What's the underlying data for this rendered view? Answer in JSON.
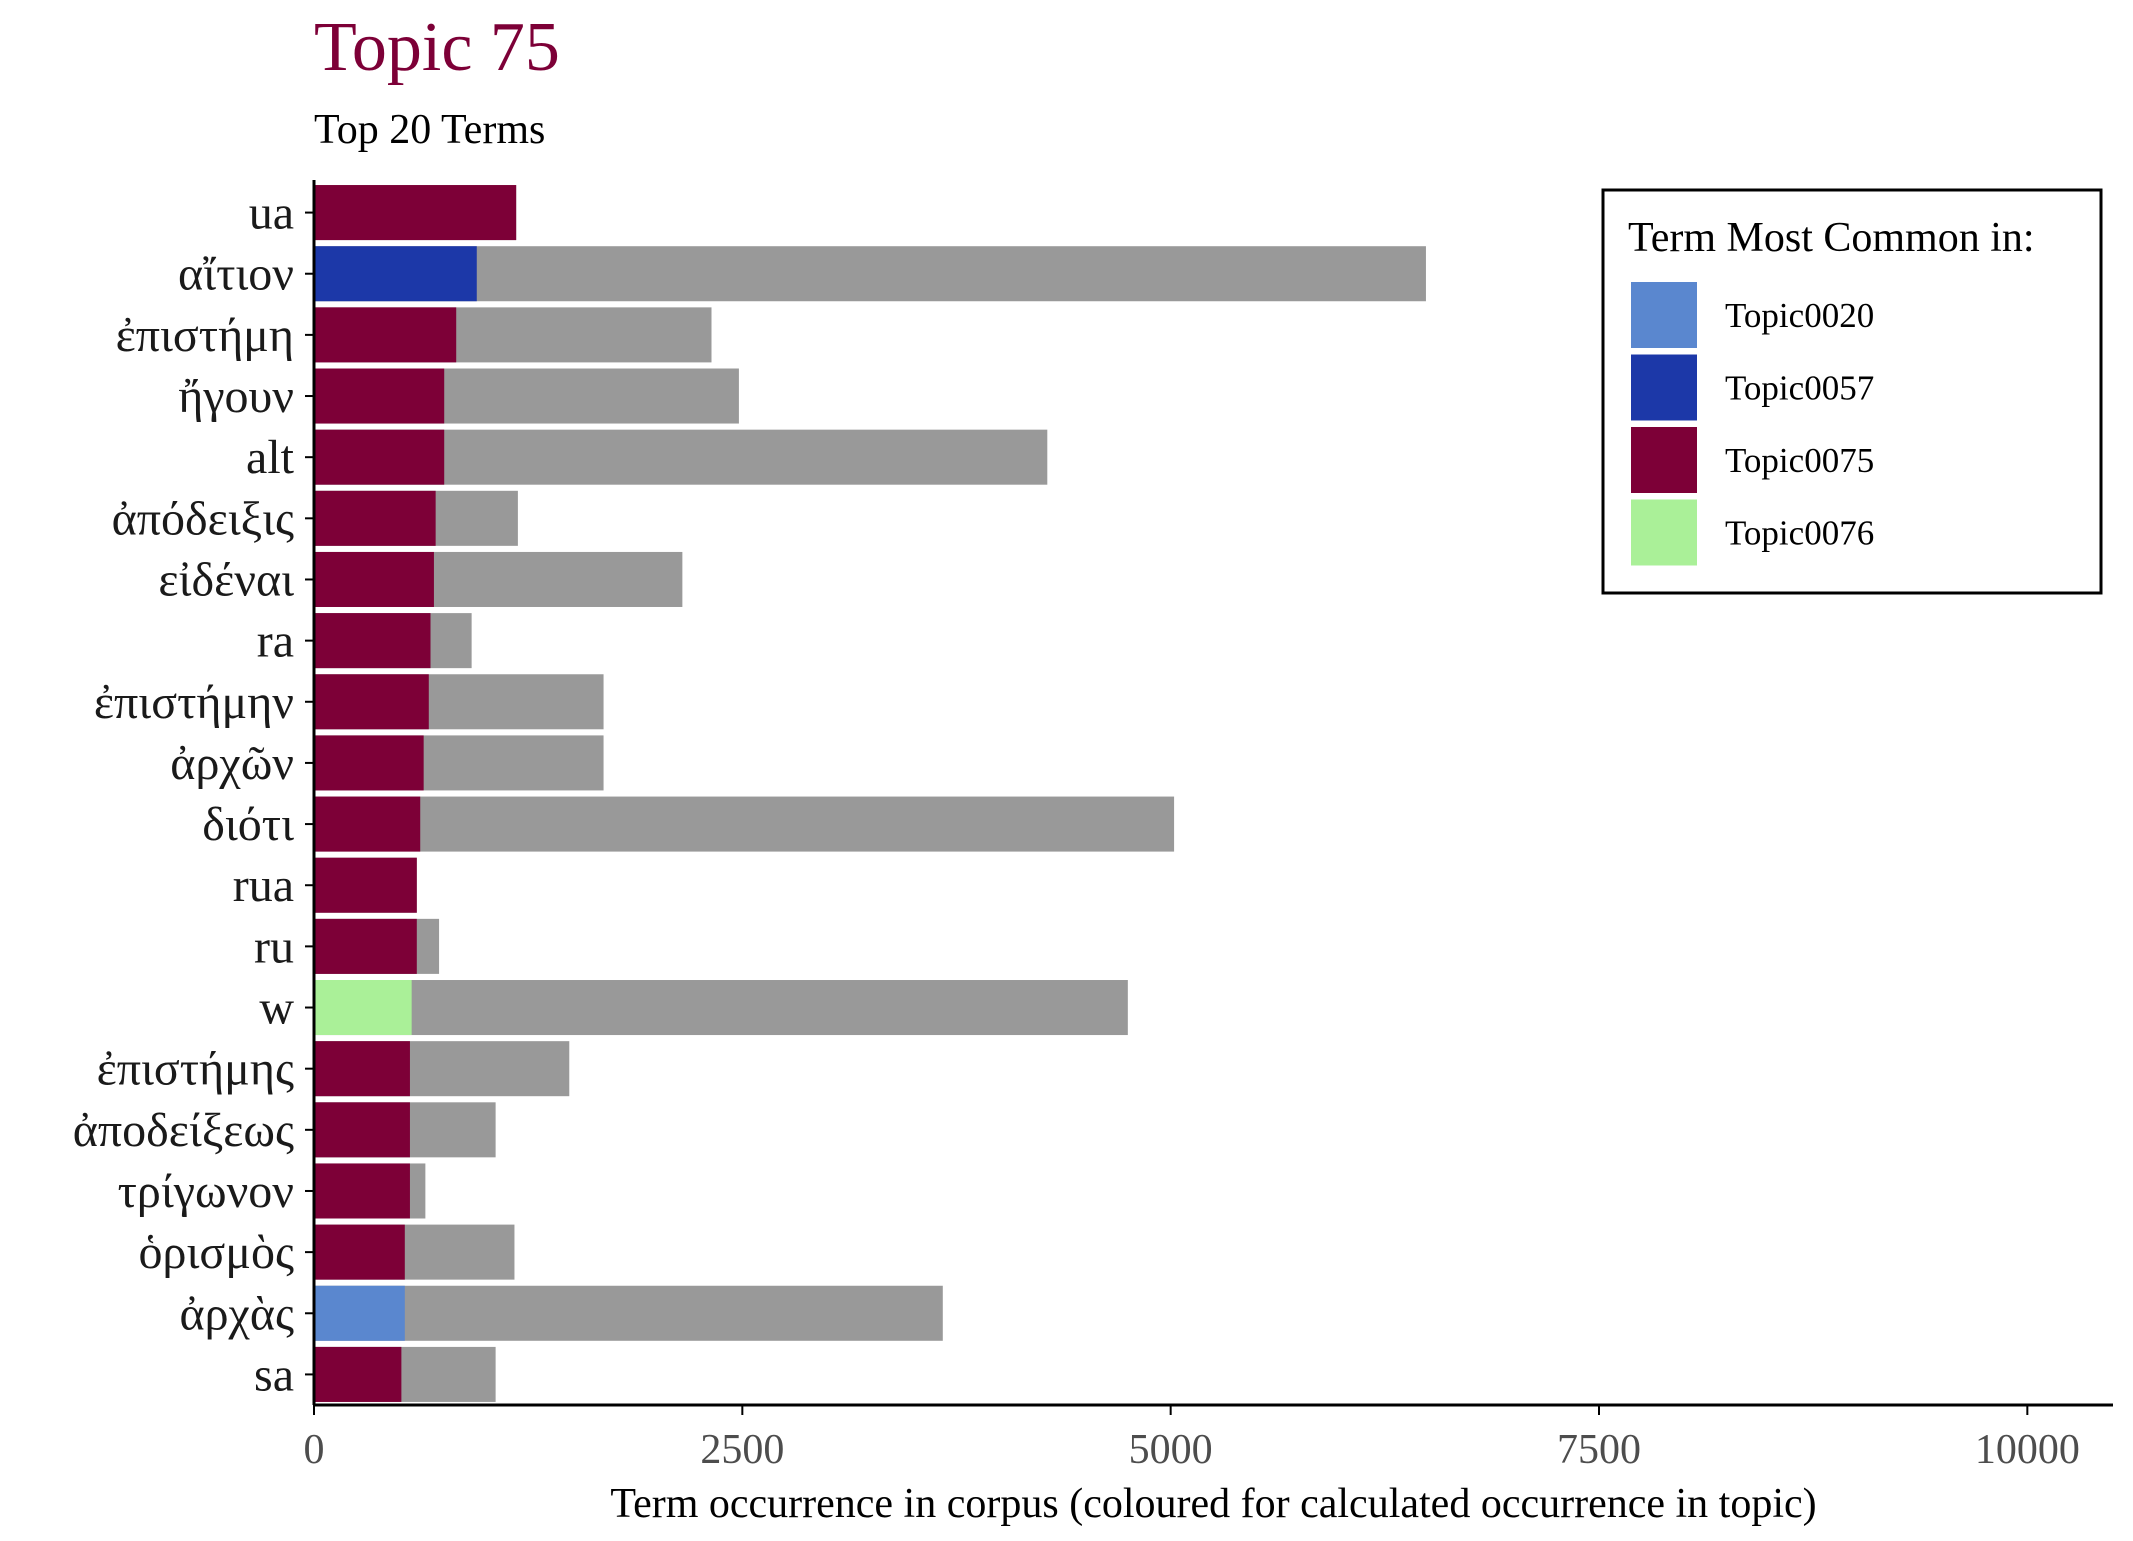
{
  "chart_data": {
    "type": "bar",
    "orientation": "horizontal",
    "title": "Topic 75",
    "subtitle": "Top 20 Terms",
    "xlabel": "Term occurrence in corpus (coloured for calculated occurrence in topic)",
    "ylabel": "",
    "xlim": [
      0,
      10500
    ],
    "xticks": [
      0,
      2500,
      5000,
      7500,
      10000
    ],
    "xtick_labels": [
      "0",
      "2500",
      "5000",
      "7500",
      "10000"
    ],
    "grid": false,
    "legend_position": "top-right",
    "legend_title": "Term Most Common in:",
    "legend": [
      {
        "name": "Topic0020",
        "color": "#5a87cf"
      },
      {
        "name": "Topic0057",
        "color": "#1c38a8"
      },
      {
        "name": "Topic0075",
        "color": "#7d0037"
      },
      {
        "name": "Topic0076",
        "color": "#aaf098"
      }
    ],
    "colors": {
      "title": "#7d0037",
      "corpus": "#999999",
      "axis": "#000000"
    },
    "categories": [
      "ua",
      "αἴτιον",
      "ἐπιστήμη",
      "ἤγουν",
      "alt",
      "ἀπόδειξις",
      "εἰδέναι",
      "ra",
      "ἐπιστήμην",
      "ἀρχῶν",
      "διότι",
      "rua",
      "ru",
      "w",
      "ἐπιστήμης",
      "ἀποδείξεως",
      "τρίγωνον",
      "ὁρισμὸς",
      "ἀρχὰς",
      "sa"
    ],
    "series": [
      {
        "name": "",
        "role": "corpus",
        "values": [
          1180,
          6490,
          2320,
          2480,
          4280,
          1190,
          2150,
          920,
          1690,
          1690,
          5020,
          600,
          730,
          4750,
          1490,
          1060,
          650,
          1170,
          3670,
          1060
        ]
      },
      {
        "name": "",
        "role": "topic",
        "values": [
          1180,
          950,
          830,
          760,
          760,
          710,
          700,
          680,
          670,
          640,
          620,
          600,
          600,
          570,
          560,
          560,
          560,
          530,
          530,
          510
        ]
      }
    ],
    "topic_groups": [
      "Topic0075",
      "Topic0057",
      "Topic0075",
      "Topic0075",
      "Topic0075",
      "Topic0075",
      "Topic0075",
      "Topic0075",
      "Topic0075",
      "Topic0075",
      "Topic0075",
      "Topic0075",
      "Topic0075",
      "Topic0076",
      "Topic0075",
      "Topic0075",
      "Topic0075",
      "Topic0075",
      "Topic0020",
      "Topic0075"
    ]
  }
}
